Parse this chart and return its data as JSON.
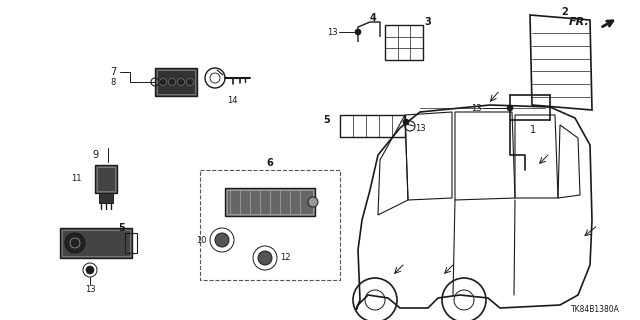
{
  "background_color": "#ffffff",
  "line_color": "#1a1a1a",
  "diagram_id": "TK84B1380A",
  "fig_width": 6.4,
  "fig_height": 3.2,
  "dpi": 100
}
